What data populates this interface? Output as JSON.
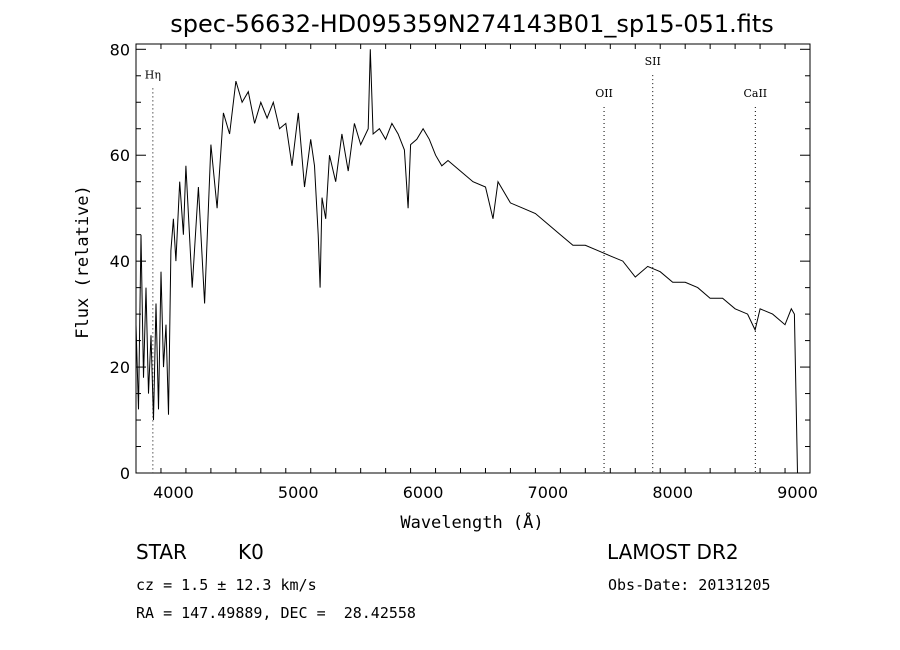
{
  "chart_data": {
    "type": "line",
    "title": "spec-56632-HD095359N274143B01_sp15-051.fits",
    "xlabel": "Wavelength (Å)",
    "ylabel": "Flux (relative)",
    "xlim": [
      3700,
      9100
    ],
    "ylim": [
      0,
      81
    ],
    "xticks": [
      4000,
      5000,
      6000,
      7000,
      8000,
      9000
    ],
    "yticks": [
      0,
      20,
      40,
      60,
      80
    ],
    "grid": false,
    "series": [
      {
        "x": [
          3700,
          3720,
          3740,
          3760,
          3780,
          3800,
          3820,
          3840,
          3860,
          3880,
          3900,
          3920,
          3940,
          3960,
          3980,
          4000,
          4020,
          4050,
          4080,
          4100,
          4150,
          4200,
          4250,
          4300,
          4350,
          4400,
          4450,
          4500,
          4550,
          4600,
          4650,
          4700,
          4750,
          4800,
          4850,
          4900,
          4950,
          5000,
          5050,
          5100,
          5130,
          5160,
          5175,
          5190,
          5220,
          5250,
          5300,
          5350,
          5400,
          5450,
          5500,
          5560,
          5577,
          5600,
          5650,
          5700,
          5750,
          5800,
          5850,
          5880,
          5900,
          5950,
          6000,
          6050,
          6100,
          6150,
          6200,
          6300,
          6400,
          6500,
          6560,
          6600,
          6700,
          6800,
          6900,
          7000,
          7100,
          7200,
          7300,
          7400,
          7500,
          7600,
          7700,
          7800,
          7900,
          8000,
          8100,
          8200,
          8300,
          8400,
          8500,
          8600,
          8660,
          8700,
          8800,
          8850,
          8900,
          8950,
          8975,
          9000
        ],
        "y": [
          28,
          12,
          45,
          18,
          35,
          15,
          26,
          10,
          32,
          12,
          38,
          20,
          28,
          11,
          42,
          48,
          40,
          55,
          45,
          58,
          35,
          54,
          32,
          62,
          50,
          68,
          64,
          74,
          70,
          72,
          66,
          70,
          67,
          70,
          65,
          66,
          58,
          68,
          54,
          63,
          58,
          45,
          35,
          52,
          48,
          60,
          55,
          64,
          57,
          66,
          62,
          65,
          80,
          64,
          65,
          63,
          66,
          64,
          61,
          50,
          62,
          63,
          65,
          63,
          60,
          58,
          59,
          57,
          55,
          54,
          48,
          55,
          51,
          50,
          49,
          47,
          45,
          43,
          43,
          42,
          41,
          40,
          37,
          39,
          38,
          36,
          36,
          35,
          33,
          33,
          31,
          30,
          27,
          31,
          30,
          29,
          28,
          31,
          30,
          0
        ]
      }
    ],
    "line_markers": [
      {
        "label": "Hη",
        "x": 3835,
        "label_y": 74.5
      },
      {
        "label": "OII",
        "x": 7450,
        "label_y": 71
      },
      {
        "label": "SII",
        "x": 7840,
        "label_y": 77
      },
      {
        "label": "CaII",
        "x": 8662,
        "label_y": 71
      }
    ]
  },
  "info": {
    "object_class": "STAR",
    "subclass": "K0",
    "survey": "LAMOST DR2",
    "redshift_line": "cz = 1.5 ± 12.3 km/s",
    "obs_date": "Obs-Date: 20131205",
    "coords": "RA = 147.49889, DEC =  28.42558"
  }
}
